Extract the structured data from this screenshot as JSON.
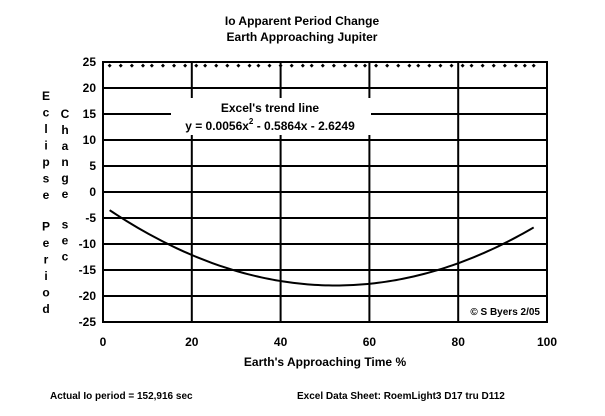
{
  "chart_data": {
    "type": "line",
    "title": "Io Apparent Period Change",
    "subtitle": "Earth Approaching Jupiter",
    "xlabel": "Earth's Approaching Time %",
    "ylabel_outer": "Eclipse Period",
    "ylabel_inner": "Change sec",
    "xlim": [
      0,
      100
    ],
    "ylim": [
      -25,
      25
    ],
    "x_ticks": [
      "0",
      "20",
      "40",
      "60",
      "80",
      "100"
    ],
    "y_ticks": [
      "25",
      "20",
      "15",
      "10",
      "5",
      "0",
      "-5",
      "-10",
      "-15",
      "-20",
      "-25"
    ],
    "grid": true,
    "trend": {
      "label": "Excel's trend line",
      "equation_prefix": "y = 0.0056x",
      "equation_exp": "2",
      "equation_suffix": " - 0.5864x - 2.6249",
      "coefficients": [
        0.0056,
        -0.5864,
        -2.6249
      ],
      "x_range": [
        1.5,
        97
      ]
    },
    "scatter": {
      "y": 24.3,
      "x": [
        1.5,
        4,
        6.5,
        9,
        11,
        13.5,
        16,
        18.5,
        21,
        23,
        25.5,
        28,
        30.5,
        33,
        35,
        37.5,
        40,
        42.5,
        45,
        47,
        49.5,
        52,
        54.5,
        57,
        59,
        61.5,
        64,
        66.5,
        69,
        71,
        73.5,
        76,
        78.5,
        81,
        83,
        85.5,
        88,
        90.5,
        93,
        95,
        97
      ]
    },
    "copyright": "© S Byers 2/05"
  },
  "footer": {
    "left": "Actual Io period = 152,916 sec",
    "right": "Excel Data Sheet:  RoemLight3    D17 tru D112"
  }
}
